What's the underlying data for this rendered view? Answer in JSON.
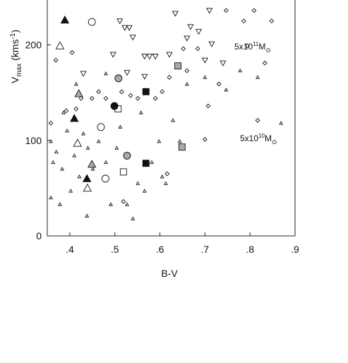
{
  "chart_data": {
    "type": "scatter",
    "xlabel": "B-V",
    "ylabel": {
      "main": "V",
      "sub": "max",
      "unit": " (kms",
      "sup": "-1",
      "close": ")"
    },
    "annotations": [
      {
        "base": "5x10",
        "exp": "11",
        "unit": "M",
        "sub": "⊙"
      },
      {
        "base": "5x10",
        "exp": "10",
        "unit": "M",
        "sub": "⊙"
      }
    ],
    "xlim": [
      0.35,
      0.9
    ],
    "ylim": [
      0,
      247
    ],
    "xticks": [
      {
        "value": 0.4,
        "label": ".4"
      },
      {
        "value": 0.5,
        "label": ".5"
      },
      {
        "value": 0.6,
        "label": ".6"
      },
      {
        "value": 0.7,
        "label": ".7"
      },
      {
        "value": 0.8,
        "label": ".8"
      },
      {
        "value": 0.9,
        "label": ".9"
      }
    ],
    "yticks": [
      0,
      100,
      200
    ],
    "series": [
      {
        "marker": "triangle-small",
        "color": "#111111",
        "fill": "none",
        "x": [
          0.358,
          0.363,
          0.37,
          0.383,
          0.394,
          0.402,
          0.41,
          0.421,
          0.43,
          0.44,
          0.451,
          0.464,
          0.48,
          0.491,
          0.504,
          0.512,
          0.54,
          0.551,
          0.566,
          0.582,
          0.598,
          0.605,
          0.629,
          0.66,
          0.7,
          0.747,
          0.778,
          0.817,
          0.869,
          0.358,
          0.378,
          0.438,
          0.527,
          0.613,
          0.386,
          0.414,
          0.48,
          0.558,
          0.644
        ],
        "y": [
          99,
          77,
          88,
          70,
          110,
          47,
          84,
          62,
          107,
          92,
          70,
          99,
          77,
          33,
          92,
          114,
          18,
          55,
          47,
          77,
          99,
          62,
          121,
          159,
          166,
          153,
          173,
          166,
          118,
          40,
          33,
          21,
          33,
          55,
          129,
          159,
          170,
          129,
          99
        ]
      },
      {
        "marker": "diamond",
        "color": "#111111",
        "fill": "none",
        "x": [
          0.369,
          0.405,
          0.414,
          0.425,
          0.449,
          0.464,
          0.48,
          0.515,
          0.535,
          0.551,
          0.59,
          0.605,
          0.621,
          0.652,
          0.684,
          0.707,
          0.731,
          0.786,
          0.809,
          0.833,
          0.848,
          0.817,
          0.7,
          0.616,
          0.358,
          0.392,
          0.519,
          0.747,
          0.794,
          0.66
        ],
        "y": [
          184,
          192,
          133,
          144,
          144,
          151,
          144,
          151,
          147,
          144,
          144,
          151,
          166,
          196,
          196,
          136,
          159,
          225,
          236,
          181,
          225,
          121,
          101,
          65,
          118,
          131,
          36,
          236,
          199,
          173
        ]
      },
      {
        "marker": "triangle-down",
        "color": "#111111",
        "fill": "none",
        "x": [
          0.496,
          0.532,
          0.54,
          0.566,
          0.577,
          0.59,
          0.621,
          0.668,
          0.66,
          0.7,
          0.715,
          0.74,
          0.43,
          0.566,
          0.527,
          0.522,
          0.686,
          0.634,
          0.71,
          0.511
        ],
        "y": [
          190,
          218,
          208,
          188,
          188,
          188,
          190,
          219,
          207,
          184,
          201,
          181,
          170,
          167,
          171,
          218,
          214,
          233,
          236,
          225
        ]
      },
      {
        "marker": "triangle",
        "color": "#111111",
        "fill": "#111111",
        "x": [
          0.389,
          0.41,
          0.438
        ],
        "y": [
          226,
          123,
          60
        ]
      },
      {
        "marker": "triangle",
        "color": "#111111",
        "fill": "none",
        "x": [
          0.378,
          0.417,
          0.439
        ],
        "y": [
          199,
          97,
          50
        ]
      },
      {
        "marker": "triangle",
        "color": "#111111",
        "fill": "#aaaaaa",
        "x": [
          0.42,
          0.449
        ],
        "y": [
          149,
          75
        ]
      },
      {
        "marker": "circle",
        "color": "#111111",
        "fill": "none",
        "x": [
          0.449,
          0.469,
          0.479
        ],
        "y": [
          224,
          114,
          60
        ]
      },
      {
        "marker": "circle",
        "color": "#111111",
        "fill": "#aaaaaa",
        "x": [
          0.508,
          0.527
        ],
        "y": [
          165,
          84
        ]
      },
      {
        "marker": "circle",
        "color": "#111111",
        "fill": "#111111",
        "x": [
          0.499
        ],
        "y": [
          136
        ]
      },
      {
        "marker": "square",
        "color": "#111111",
        "fill": "none",
        "x": [
          0.507,
          0.519
        ],
        "y": [
          133,
          67
        ]
      },
      {
        "marker": "square",
        "color": "#111111",
        "fill": "#aaaaaa",
        "x": [
          0.64,
          0.649
        ],
        "y": [
          178,
          93
        ]
      },
      {
        "marker": "square",
        "color": "#111111",
        "fill": "#111111",
        "x": [
          0.569,
          0.569
        ],
        "y": [
          151,
          76
        ]
      }
    ]
  }
}
